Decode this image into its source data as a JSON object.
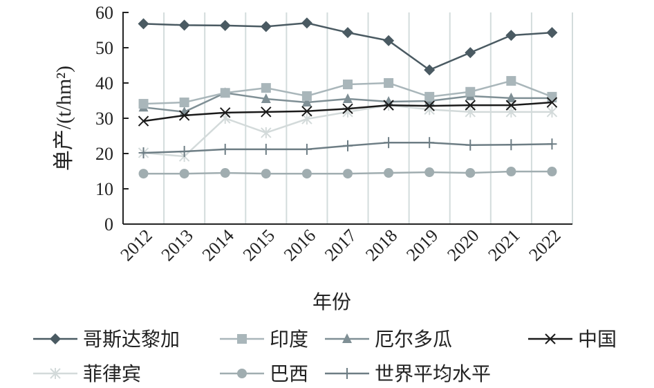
{
  "chart_data": {
    "type": "line",
    "title": "",
    "xlabel": "年份",
    "ylabel": "单产/(t/hm²)",
    "ylim": [
      0,
      60
    ],
    "yticks": [
      0,
      10,
      20,
      30,
      40,
      50,
      60
    ],
    "grid": "vertical",
    "legend_position": "bottom",
    "categories": [
      "2012",
      "2013",
      "2014",
      "2015",
      "2016",
      "2017",
      "2018",
      "2019",
      "2020",
      "2021",
      "2022"
    ],
    "series": [
      {
        "name": "哥斯达黎加",
        "marker": "diamond",
        "color": "#4a5a62",
        "values": [
          56.8,
          56.4,
          56.3,
          56.0,
          57.0,
          54.3,
          52.0,
          43.7,
          48.6,
          53.5,
          54.3
        ]
      },
      {
        "name": "印度",
        "marker": "square",
        "color": "#a9b6ba",
        "values": [
          34.1,
          34.5,
          37.2,
          38.6,
          36.3,
          39.6,
          40.0,
          36.1,
          37.5,
          40.6,
          36.1
        ]
      },
      {
        "name": "厄尔多瓜",
        "marker": "triangle",
        "color": "#7f8f95",
        "values": [
          33.1,
          31.8,
          37.2,
          35.5,
          34.5,
          35.5,
          34.7,
          34.9,
          36.3,
          35.7,
          35.7
        ]
      },
      {
        "name": "中国",
        "marker": "x",
        "color": "#1a1a1a",
        "values": [
          29.2,
          30.8,
          31.6,
          31.8,
          32.0,
          32.7,
          33.7,
          33.5,
          33.7,
          33.7,
          34.5
        ]
      },
      {
        "name": "菲律宾",
        "marker": "star",
        "color": "#d3dada",
        "values": [
          20.2,
          19.2,
          30.0,
          25.9,
          29.8,
          31.8,
          33.7,
          32.5,
          31.8,
          31.8,
          31.8
        ]
      },
      {
        "name": "巴西",
        "marker": "circle",
        "color": "#a0adb0",
        "values": [
          14.3,
          14.3,
          14.5,
          14.3,
          14.3,
          14.3,
          14.5,
          14.7,
          14.5,
          14.9,
          14.9
        ]
      },
      {
        "name": "世界平均水平",
        "marker": "plus",
        "color": "#6d7d84",
        "values": [
          20.2,
          20.6,
          21.2,
          21.2,
          21.2,
          22.2,
          23.1,
          23.1,
          22.4,
          22.5,
          22.7
        ]
      }
    ]
  }
}
